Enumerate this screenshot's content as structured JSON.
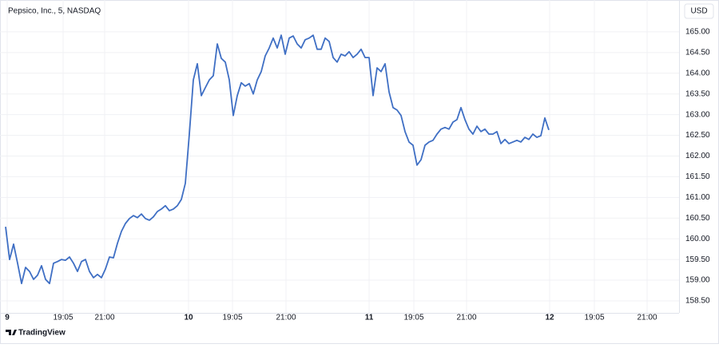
{
  "chart_data": {
    "type": "line",
    "title": "Pepsico, Inc., 5, NASDAQ",
    "currency": "USD",
    "brand": "TradingView",
    "color": "#3f6fc4",
    "grid": true,
    "x": [
      0,
      1,
      2,
      3,
      4,
      5,
      6,
      7,
      8,
      9,
      10,
      11,
      12,
      13,
      14,
      15,
      16,
      17,
      18,
      19,
      20,
      21,
      22,
      23,
      24,
      25,
      26,
      27,
      28,
      29,
      30,
      31,
      32,
      33,
      34,
      35,
      36,
      37,
      38,
      39,
      40,
      41,
      42,
      43,
      44,
      45,
      46,
      47,
      48,
      49,
      50,
      51,
      52,
      53,
      54,
      55,
      56,
      57,
      58,
      59,
      60,
      61,
      62,
      63,
      64,
      65,
      66,
      67,
      68,
      69,
      70,
      71,
      72,
      73,
      74,
      75,
      76,
      77,
      78,
      79,
      80,
      81,
      82,
      83,
      84,
      85,
      86,
      87,
      88,
      89,
      90,
      91,
      92,
      93,
      94,
      95,
      96,
      97,
      98,
      99,
      100,
      101,
      102,
      103,
      104,
      105,
      106,
      107,
      108,
      109,
      110,
      111,
      112,
      113,
      114,
      115,
      116,
      117,
      118,
      119,
      120,
      121,
      122,
      123,
      124,
      125,
      126,
      127,
      128,
      129,
      130,
      131,
      132,
      133,
      134,
      135,
      136
    ],
    "values": [
      160.29,
      159.5,
      159.87,
      159.41,
      158.92,
      159.31,
      159.21,
      159.02,
      159.12,
      159.35,
      159.02,
      158.92,
      159.41,
      159.45,
      159.5,
      159.48,
      159.56,
      159.41,
      159.21,
      159.45,
      159.5,
      159.21,
      159.06,
      159.14,
      159.06,
      159.27,
      159.56,
      159.54,
      159.89,
      160.18,
      160.37,
      160.49,
      160.56,
      160.51,
      160.6,
      160.49,
      160.45,
      160.53,
      160.66,
      160.72,
      160.8,
      160.68,
      160.72,
      160.8,
      160.95,
      161.34,
      162.53,
      163.84,
      164.23,
      163.46,
      163.65,
      163.84,
      163.94,
      164.71,
      164.36,
      164.27,
      163.84,
      162.98,
      163.46,
      163.77,
      163.69,
      163.75,
      163.5,
      163.84,
      164.04,
      164.42,
      164.61,
      164.85,
      164.61,
      164.92,
      164.46,
      164.85,
      164.9,
      164.71,
      164.61,
      164.81,
      164.85,
      164.92,
      164.58,
      164.58,
      164.85,
      164.77,
      164.38,
      164.27,
      164.46,
      164.42,
      164.52,
      164.38,
      164.46,
      164.58,
      164.38,
      164.38,
      163.46,
      164.13,
      164.04,
      164.23,
      163.55,
      163.17,
      163.11,
      162.98,
      162.59,
      162.34,
      162.26,
      161.78,
      161.91,
      162.26,
      162.34,
      162.38,
      162.53,
      162.65,
      162.69,
      162.65,
      162.82,
      162.88,
      163.17,
      162.88,
      162.65,
      162.53,
      162.72,
      162.59,
      162.65,
      162.53,
      162.53,
      162.59,
      162.3,
      162.4,
      162.3,
      162.34,
      162.38,
      162.34,
      162.45,
      162.4,
      162.53,
      162.45,
      162.49,
      162.92,
      162.63
    ],
    "xlim": [
      -1.4,
      168.6
    ],
    "xticks": [
      {
        "value": 0.4,
        "label": "9"
      },
      {
        "value": 14.4,
        "label": "19:05"
      },
      {
        "value": 24.8,
        "label": "21:00"
      },
      {
        "value": 45.8,
        "label": "10"
      },
      {
        "value": 56.8,
        "label": "19:05"
      },
      {
        "value": 70.2,
        "label": "21:00"
      },
      {
        "value": 91,
        "label": "11"
      },
      {
        "value": 102.2,
        "label": "19:05"
      },
      {
        "value": 115.4,
        "label": "21:00"
      },
      {
        "value": 136.2,
        "label": "12"
      },
      {
        "value": 147.4,
        "label": "19:05"
      },
      {
        "value": 160.6,
        "label": "21:00"
      }
    ],
    "ylim": [
      158.21,
      165.77
    ],
    "yticks": [
      {
        "value": 158.5,
        "label": "158.50"
      },
      {
        "value": 159,
        "label": "159.00"
      },
      {
        "value": 159.5,
        "label": "159.50"
      },
      {
        "value": 160,
        "label": "160.00"
      },
      {
        "value": 160.5,
        "label": "160.50"
      },
      {
        "value": 161,
        "label": "161.00"
      },
      {
        "value": 161.5,
        "label": "161.50"
      },
      {
        "value": 162,
        "label": "162.00"
      },
      {
        "value": 162.5,
        "label": "162.50"
      },
      {
        "value": 163,
        "label": "163.00"
      },
      {
        "value": 163.5,
        "label": "163.50"
      },
      {
        "value": 164,
        "label": "164.00"
      },
      {
        "value": 164.5,
        "label": "164.50"
      },
      {
        "value": 165,
        "label": "165.00"
      }
    ]
  }
}
